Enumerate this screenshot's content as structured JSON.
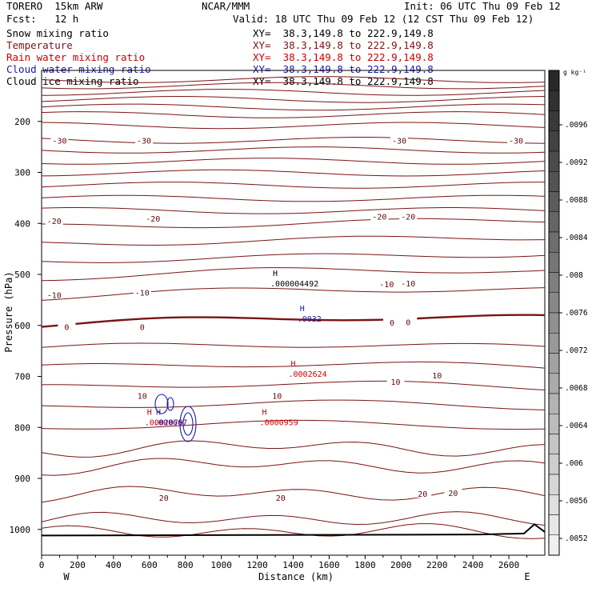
{
  "header": {
    "model": "TORERO  15km ARW",
    "center": "NCAR/MMM",
    "init": "Init: 06 UTC Thu 09 Feb 12",
    "fcst": "Fcst:   12 h",
    "valid": "Valid: 18 UTC Thu 09 Feb 12 (12 CST Thu 09 Feb 12)"
  },
  "colors": {
    "snow": "#000000",
    "temperature": "#7a1414",
    "rain": "#cc0000",
    "cloud_water": "#1a1aaa",
    "cloud_ice": "#000000"
  },
  "chart_data": {
    "type": "cross-section contour",
    "xlabel": "Distance (km)",
    "ylabel": "Pressure (hPa)",
    "xlim": [
      0,
      2800
    ],
    "ylim": [
      1050,
      100
    ],
    "x_ticks": [
      "0",
      "200",
      "400",
      "600",
      "800",
      "1000",
      "1200",
      "1400",
      "1600",
      "1800",
      "2000",
      "2200",
      "2400",
      "2600"
    ],
    "y_ticks": [
      "200",
      "300",
      "400",
      "500",
      "600",
      "700",
      "800",
      "900",
      "1000"
    ],
    "x_end_labels": {
      "west": "W",
      "east": "E"
    },
    "legend": [
      {
        "name": "Snow mixing ratio",
        "xy": "XY=  38.3,149.8 to 222.9,149.8",
        "color": "#000000"
      },
      {
        "name": "Temperature",
        "xy": "XY=  38.3,149.8 to 222.9,149.8",
        "color": "#7a1414"
      },
      {
        "name": "Rain water mixing ratio",
        "xy": "XY=  38.3,149.8 to 222.9,149.8",
        "color": "#cc0000"
      },
      {
        "name": "Cloud water mixing ratio",
        "xy": "XY=  38.3,149.8 to 222.9,149.8",
        "color": "#1a1aaa"
      },
      {
        "name": "Cloud ice mixing ratio",
        "xy": "XY=  38.3,149.8 to 222.9,149.8",
        "color": "#000000"
      }
    ],
    "temperature_contour_levels_p": [
      118,
      130,
      143,
      157,
      172,
      187,
      208,
      237,
      256,
      278,
      301,
      325,
      351,
      375,
      407,
      440,
      473,
      507,
      545,
      600,
      645,
      683,
      722,
      760,
      800,
      845,
      880,
      935,
      985,
      1010
    ],
    "temperature_labels": [
      {
        "text": "-30",
        "x": 100,
        "p": 237
      },
      {
        "text": "-30",
        "x": 570,
        "p": 237
      },
      {
        "text": "-30",
        "x": 1990,
        "p": 237
      },
      {
        "text": "-30",
        "x": 2640,
        "p": 237
      },
      {
        "text": "-20",
        "x": 70,
        "p": 395
      },
      {
        "text": "-20",
        "x": 620,
        "p": 390
      },
      {
        "text": "-20",
        "x": 1880,
        "p": 386
      },
      {
        "text": "-20",
        "x": 2040,
        "p": 386
      },
      {
        "text": "-10",
        "x": 70,
        "p": 540
      },
      {
        "text": "-10",
        "x": 560,
        "p": 535
      },
      {
        "text": "-10",
        "x": 1920,
        "p": 519
      },
      {
        "text": "-10",
        "x": 2040,
        "p": 517
      },
      {
        "text": "0",
        "x": 140,
        "p": 603
      },
      {
        "text": "0",
        "x": 560,
        "p": 603
      },
      {
        "text": "0",
        "x": 1950,
        "p": 594
      },
      {
        "text": "0",
        "x": 2040,
        "p": 593
      },
      {
        "text": "10",
        "x": 560,
        "p": 738
      },
      {
        "text": "10",
        "x": 1310,
        "p": 738
      },
      {
        "text": "10",
        "x": 1970,
        "p": 710
      },
      {
        "text": "10",
        "x": 2200,
        "p": 698
      },
      {
        "text": "20",
        "x": 680,
        "p": 938
      },
      {
        "text": "20",
        "x": 1330,
        "p": 938
      },
      {
        "text": "20",
        "x": 2120,
        "p": 930
      },
      {
        "text": "20",
        "x": 2290,
        "p": 928
      }
    ],
    "extrema": [
      {
        "label": "H",
        "value": ".000004492",
        "x": 1300,
        "p": 503,
        "series": "snow"
      },
      {
        "label": "H",
        "value": ".0032",
        "x": 1450,
        "p": 572,
        "series": "cloud_water"
      },
      {
        "label": "H",
        "value": ".0002624",
        "x": 1400,
        "p": 680,
        "series": "rain"
      },
      {
        "label": "H",
        "value": ".0000959",
        "x": 1240,
        "p": 775,
        "series": "rain"
      },
      {
        "label": "H",
        "value": ".0002079",
        "x": 600,
        "p": 775,
        "series": "rain"
      },
      {
        "label": "H",
        "value": ".000667",
        "x": 650,
        "p": 775,
        "series": "cloud_water"
      }
    ],
    "colorbar": {
      "unit": "g kg⁻¹",
      "labels": [
        ".0096",
        ".0092",
        ".0088",
        ".0084",
        ".008",
        ".0076",
        ".0072",
        ".0068",
        ".0064",
        ".006",
        ".0056",
        ".0052"
      ]
    }
  }
}
